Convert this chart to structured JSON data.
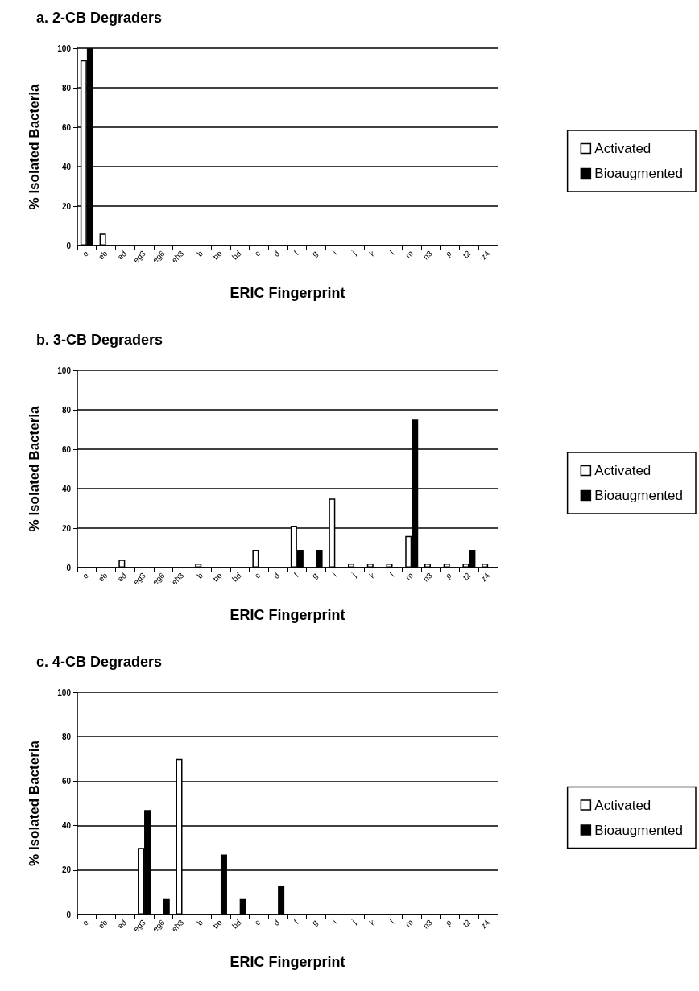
{
  "chart_data": [
    {
      "type": "bar",
      "title": "a. 2-CB Degraders",
      "xlabel": "ERIC Fingerprint",
      "ylabel": "% Isolated Bacteria",
      "categories": [
        "e",
        "eb",
        "ed",
        "eg3",
        "eg6",
        "eh3",
        "b",
        "be",
        "bd",
        "c",
        "d",
        "f",
        "g",
        "i",
        "j",
        "k",
        "l",
        "m",
        "n3",
        "p",
        "t2",
        "z4"
      ],
      "series": [
        {
          "name": "Activated",
          "color": "#ffffff",
          "values": [
            94,
            6,
            0,
            0,
            0,
            0,
            0,
            0,
            0,
            0,
            0,
            0,
            0,
            0,
            0,
            0,
            0,
            0,
            0,
            0,
            0,
            0
          ]
        },
        {
          "name": "Bioaugmented",
          "color": "#000000",
          "values": [
            100,
            0,
            0,
            0,
            0,
            0,
            0,
            0,
            0,
            0,
            0,
            0,
            0,
            0,
            0,
            0,
            0,
            0,
            0,
            0,
            0,
            0
          ]
        }
      ],
      "ylim": [
        0,
        100
      ],
      "yticks": [
        0,
        20,
        40,
        60,
        80,
        100
      ],
      "grid": "y",
      "legend": "right"
    },
    {
      "type": "bar",
      "title": "b. 3-CB Degraders",
      "xlabel": "ERIC Fingerprint",
      "ylabel": "% Isolated Bacteria",
      "categories": [
        "e",
        "eb",
        "ed",
        "eg3",
        "eg6",
        "eh3",
        "b",
        "be",
        "bd",
        "c",
        "d",
        "f",
        "g",
        "i",
        "j",
        "k",
        "l",
        "m",
        "n3",
        "p",
        "t2",
        "z4"
      ],
      "series": [
        {
          "name": "Activated",
          "color": "#ffffff",
          "values": [
            0,
            0,
            4,
            0,
            0,
            0,
            2,
            0,
            0,
            9,
            0,
            21,
            0,
            35,
            2,
            2,
            2,
            16,
            2,
            2,
            2,
            2
          ]
        },
        {
          "name": "Bioaugmented",
          "color": "#000000",
          "values": [
            0,
            0,
            0,
            0,
            0,
            0,
            0,
            0,
            0,
            0,
            0,
            9,
            9,
            0,
            0,
            0,
            0,
            75,
            0,
            0,
            9,
            0
          ]
        }
      ],
      "ylim": [
        0,
        100
      ],
      "yticks": [
        0,
        20,
        40,
        60,
        80,
        100
      ],
      "grid": "y",
      "legend": "right"
    },
    {
      "type": "bar",
      "title": "c. 4-CB Degraders",
      "xlabel": "ERIC Fingerprint",
      "ylabel": "% Isolated Bacteria",
      "categories": [
        "e",
        "eb",
        "ed",
        "eg3",
        "eg6",
        "eh3",
        "b",
        "be",
        "bd",
        "c",
        "d",
        "f",
        "g",
        "i",
        "j",
        "k",
        "l",
        "m",
        "n3",
        "p",
        "t2",
        "z4"
      ],
      "series": [
        {
          "name": "Activated",
          "color": "#ffffff",
          "values": [
            0,
            0,
            0,
            30,
            0,
            70,
            0,
            0,
            0,
            0,
            0,
            0,
            0,
            0,
            0,
            0,
            0,
            0,
            0,
            0,
            0,
            0
          ]
        },
        {
          "name": "Bioaugmented",
          "color": "#000000",
          "values": [
            0,
            0,
            0,
            47,
            7,
            0,
            0,
            27,
            7,
            0,
            13,
            0,
            0,
            0,
            0,
            0,
            0,
            0,
            0,
            0,
            0,
            0
          ]
        }
      ],
      "ylim": [
        0,
        100
      ],
      "yticks": [
        0,
        20,
        40,
        60,
        80,
        100
      ],
      "grid": "y",
      "legend": "right"
    }
  ]
}
